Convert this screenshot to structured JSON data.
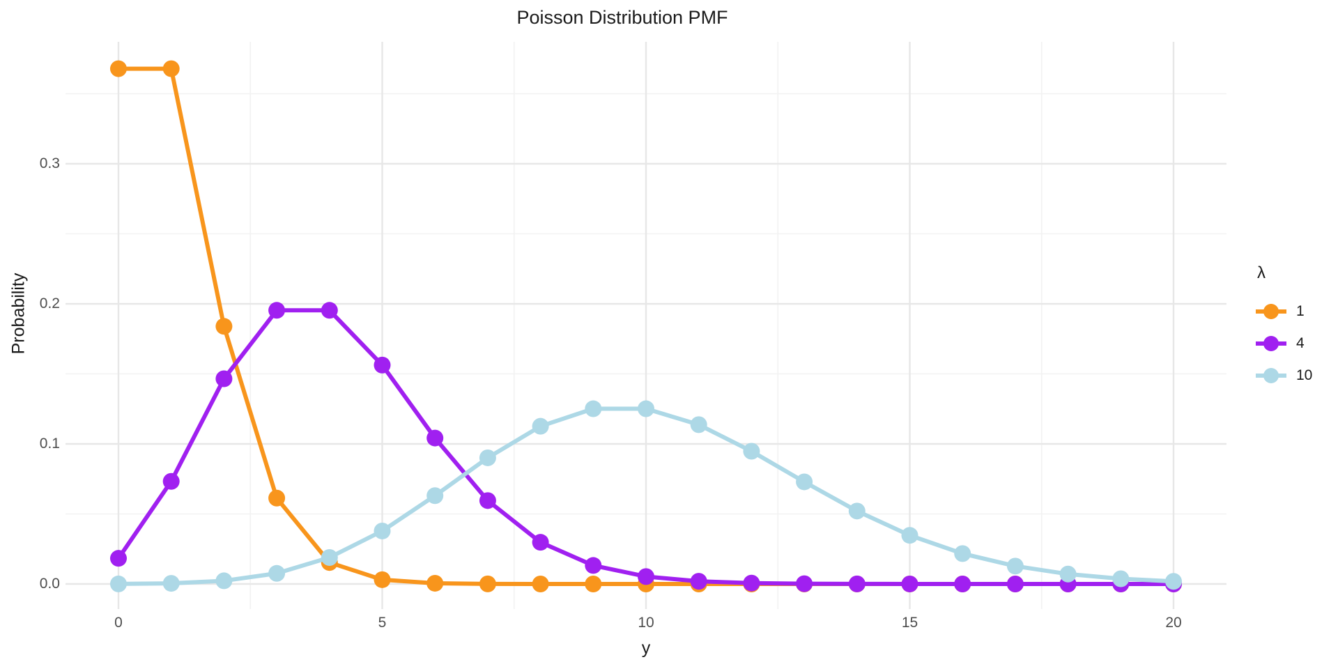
{
  "chart_data": {
    "type": "line",
    "title": "Poisson Distribution PMF",
    "xlabel": "y",
    "ylabel": "Probability",
    "legend_title": "λ",
    "legend_position": "right",
    "grid": "on",
    "background_color": "#ffffff",
    "grid_major_color": "#e7e7e7",
    "grid_minor_color": "#f2f2f2",
    "tick_label_color": "#4d4d4d",
    "x_range": [
      0,
      20
    ],
    "y_range": [
      0.0,
      0.3679
    ],
    "x_ticks": [
      0,
      5,
      10,
      15,
      20
    ],
    "x_tick_labels": [
      "0",
      "5",
      "10",
      "15",
      "20"
    ],
    "x_minor_ticks": [
      2.5,
      7.5,
      12.5,
      17.5
    ],
    "y_ticks": [
      0.0,
      0.1,
      0.2,
      0.3
    ],
    "y_tick_labels": [
      "0.0",
      "0.1",
      "0.2",
      "0.3"
    ],
    "y_minor_ticks": [
      0.05,
      0.15,
      0.25,
      0.35
    ],
    "x": [
      0,
      1,
      2,
      3,
      4,
      5,
      6,
      7,
      8,
      9,
      10,
      11,
      12,
      13,
      14,
      15,
      16,
      17,
      18,
      19,
      20
    ],
    "series": [
      {
        "name": "1",
        "color": "#F8951C",
        "values": [
          0.367879,
          0.367879,
          0.18394,
          0.061313,
          0.015328,
          0.003066,
          0.000511,
          7.3e-05,
          9e-06,
          1e-06,
          0,
          0,
          0,
          0,
          0,
          0,
          0,
          0,
          0,
          0,
          0
        ]
      },
      {
        "name": "4",
        "color": "#A020F0",
        "values": [
          0.018316,
          0.073263,
          0.146525,
          0.195367,
          0.195367,
          0.156293,
          0.104196,
          0.05954,
          0.02977,
          0.013231,
          0.005292,
          0.001925,
          0.000642,
          0.000197,
          5.6e-05,
          1.5e-05,
          4e-06,
          1e-06,
          0,
          0,
          0
        ]
      },
      {
        "name": "10",
        "color": "#ADD8E6",
        "values": [
          4.5e-05,
          0.000454,
          0.00227,
          0.007567,
          0.018917,
          0.037833,
          0.063055,
          0.090079,
          0.112599,
          0.12511,
          0.12511,
          0.113736,
          0.09478,
          0.072908,
          0.052077,
          0.034718,
          0.021699,
          0.012764,
          0.007091,
          0.003732,
          0.001866
        ]
      }
    ]
  }
}
